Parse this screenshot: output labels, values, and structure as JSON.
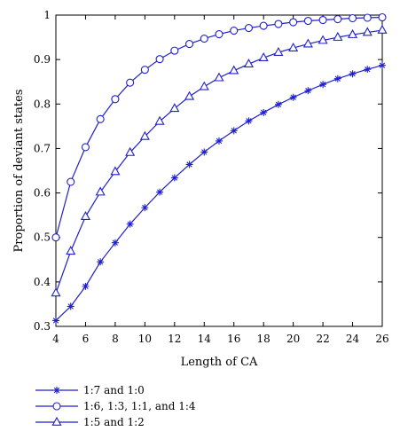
{
  "chart_data": {
    "type": "line",
    "title": "",
    "xlabel": "Length of CA",
    "ylabel": "Proportion of deviant states",
    "xlim": [
      4,
      26
    ],
    "ylim": [
      0.3,
      1.0
    ],
    "x_ticks": [
      4,
      6,
      8,
      10,
      12,
      14,
      16,
      18,
      20,
      22,
      24,
      26
    ],
    "y_ticks": [
      0.3,
      0.4,
      0.5,
      0.6,
      0.7,
      0.8,
      0.9,
      1.0
    ],
    "x_tick_labels": [
      "4",
      "6",
      "8",
      "10",
      "12",
      "14",
      "16",
      "18",
      "20",
      "22",
      "24",
      "26"
    ],
    "y_tick_labels": [
      "0.3",
      "0.4",
      "0.5",
      "0.6",
      "0.7",
      "0.8",
      "0.9",
      "1"
    ],
    "x": [
      4,
      5,
      6,
      7,
      8,
      9,
      10,
      11,
      12,
      13,
      14,
      15,
      16,
      17,
      18,
      19,
      20,
      21,
      22,
      23,
      24,
      25,
      26
    ],
    "grid": false,
    "legend_position": "below",
    "line_color": "#1f1fd0",
    "series": [
      {
        "name": "1:7 and 1:0",
        "marker": "star",
        "values": [
          0.313,
          0.345,
          0.39,
          0.445,
          0.488,
          0.53,
          0.567,
          0.602,
          0.634,
          0.664,
          0.692,
          0.717,
          0.74,
          0.762,
          0.781,
          0.799,
          0.815,
          0.83,
          0.844,
          0.857,
          0.868,
          0.878,
          0.887
        ]
      },
      {
        "name": "1:6, 1:3, 1:1, and 1:4",
        "marker": "circle",
        "values": [
          0.5,
          0.625,
          0.703,
          0.766,
          0.811,
          0.848,
          0.877,
          0.901,
          0.92,
          0.935,
          0.947,
          0.957,
          0.965,
          0.971,
          0.976,
          0.98,
          0.984,
          0.987,
          0.989,
          0.991,
          0.993,
          0.994,
          0.995
        ]
      },
      {
        "name": "1:5 and 1:2",
        "marker": "triangle",
        "values": [
          0.375,
          0.469,
          0.547,
          0.602,
          0.648,
          0.691,
          0.727,
          0.761,
          0.79,
          0.817,
          0.839,
          0.859,
          0.875,
          0.89,
          0.904,
          0.916,
          0.926,
          0.935,
          0.943,
          0.95,
          0.956,
          0.961,
          0.966
        ]
      }
    ]
  }
}
